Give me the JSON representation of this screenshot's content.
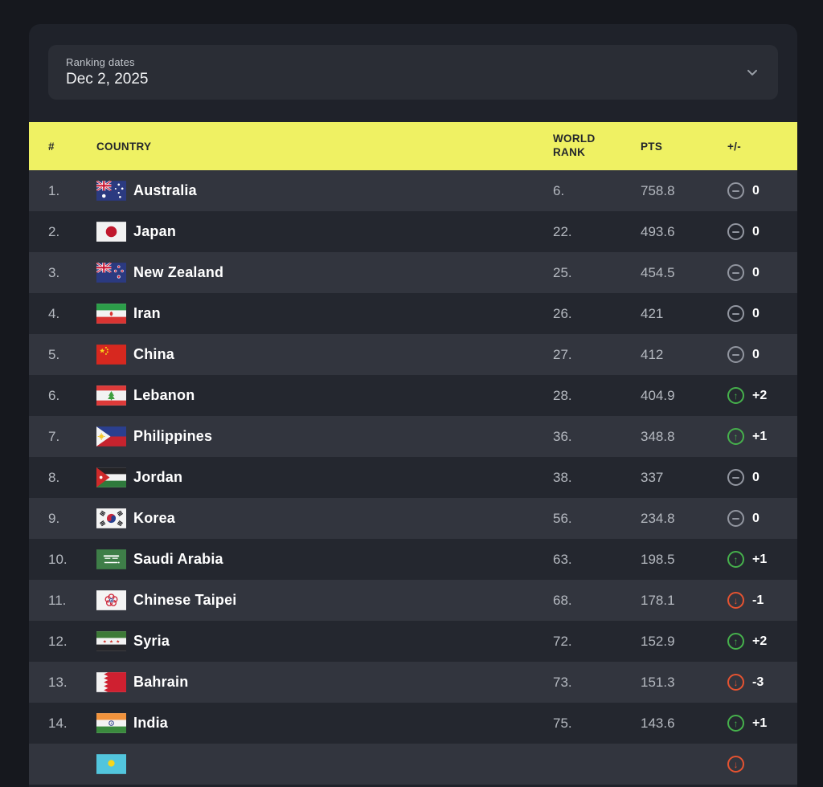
{
  "filter": {
    "label": "Ranking dates",
    "value": "Dec 2, 2025"
  },
  "table": {
    "columns": {
      "rank": "#",
      "country": "COUNTRY",
      "world_rank": "WORLD RANK",
      "pts": "PTS",
      "change": "+/-"
    },
    "rows": [
      {
        "rank": "1.",
        "flag": "australia",
        "country": "Australia",
        "world_rank": "6.",
        "pts": "758.8",
        "change": "0",
        "direction": "same"
      },
      {
        "rank": "2.",
        "flag": "japan",
        "country": "Japan",
        "world_rank": "22.",
        "pts": "493.6",
        "change": "0",
        "direction": "same"
      },
      {
        "rank": "3.",
        "flag": "new-zealand",
        "country": "New Zealand",
        "world_rank": "25.",
        "pts": "454.5",
        "change": "0",
        "direction": "same"
      },
      {
        "rank": "4.",
        "flag": "iran",
        "country": "Iran",
        "world_rank": "26.",
        "pts": "421",
        "change": "0",
        "direction": "same"
      },
      {
        "rank": "5.",
        "flag": "china",
        "country": "China",
        "world_rank": "27.",
        "pts": "412",
        "change": "0",
        "direction": "same"
      },
      {
        "rank": "6.",
        "flag": "lebanon",
        "country": "Lebanon",
        "world_rank": "28.",
        "pts": "404.9",
        "change": "+2",
        "direction": "up"
      },
      {
        "rank": "7.",
        "flag": "philippines",
        "country": "Philippines",
        "world_rank": "36.",
        "pts": "348.8",
        "change": "+1",
        "direction": "up"
      },
      {
        "rank": "8.",
        "flag": "jordan",
        "country": "Jordan",
        "world_rank": "38.",
        "pts": "337",
        "change": "0",
        "direction": "same"
      },
      {
        "rank": "9.",
        "flag": "korea",
        "country": "Korea",
        "world_rank": "56.",
        "pts": "234.8",
        "change": "0",
        "direction": "same"
      },
      {
        "rank": "10.",
        "flag": "saudi-arabia",
        "country": "Saudi Arabia",
        "world_rank": "63.",
        "pts": "198.5",
        "change": "+1",
        "direction": "up"
      },
      {
        "rank": "11.",
        "flag": "chinese-taipei",
        "country": "Chinese Taipei",
        "world_rank": "68.",
        "pts": "178.1",
        "change": "-1",
        "direction": "down"
      },
      {
        "rank": "12.",
        "flag": "syria",
        "country": "Syria",
        "world_rank": "72.",
        "pts": "152.9",
        "change": "+2",
        "direction": "up"
      },
      {
        "rank": "13.",
        "flag": "bahrain",
        "country": "Bahrain",
        "world_rank": "73.",
        "pts": "151.3",
        "change": "-3",
        "direction": "down"
      },
      {
        "rank": "14.",
        "flag": "india",
        "country": "India",
        "world_rank": "75.",
        "pts": "143.6",
        "change": "+1",
        "direction": "up"
      },
      {
        "rank": "",
        "flag": "kazakhstan",
        "country": "",
        "world_rank": "",
        "pts": "",
        "change": "",
        "direction": "down"
      }
    ]
  },
  "colors": {
    "header_background": "#eff163",
    "header_text": "#23262c",
    "row_odd": "#32353e",
    "row_even": "#24272f",
    "change_up": "#46b14c",
    "change_down": "#e55331",
    "change_same": "#9296a0"
  }
}
